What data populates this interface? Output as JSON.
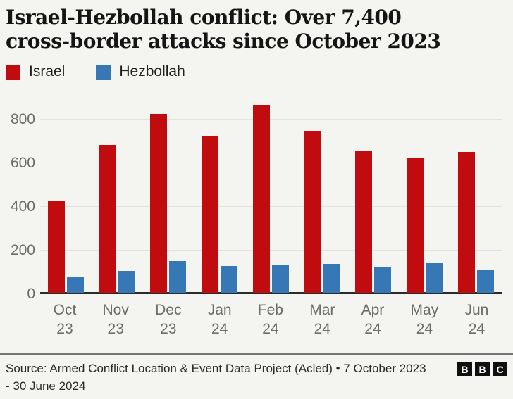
{
  "header": {
    "title_lines": [
      "Israel-Hezbollah conflict: Over 7,400",
      "cross-border attacks since October 2023"
    ]
  },
  "chart_data": {
    "type": "bar",
    "title": "Israel-Hezbollah conflict: Over 7,400 cross-border attacks since October 2023",
    "categories": [
      "Oct 23",
      "Nov 23",
      "Dec 23",
      "Jan 24",
      "Feb 24",
      "Mar 24",
      "Apr 24",
      "May 24",
      "Jun 24"
    ],
    "series": [
      {
        "name": "Israel",
        "color": "#c00c0e",
        "values": [
          425,
          681,
          822,
          724,
          864,
          744,
          656,
          619,
          648
        ]
      },
      {
        "name": "Hezbollah",
        "color": "#3677b5",
        "values": [
          73,
          104,
          150,
          127,
          131,
          136,
          120,
          140,
          108
        ]
      }
    ],
    "xlabel": "",
    "ylabel": "",
    "ylim": [
      0,
      900
    ],
    "yticks": [
      0,
      200,
      400,
      600,
      800
    ],
    "grid": true,
    "legend_position": "top-left"
  },
  "footer": {
    "source": "Source: Armed Conflict Location & Event Data Project (Acled) • 7 October 2023 - 30 June 2024",
    "logo_letters": [
      "B",
      "B",
      "C"
    ]
  },
  "colors": {
    "background": "#f4f4f1",
    "israel_red": "#c00c0e",
    "hezbollah_blue": "#3677b5",
    "axis_text": "#6c6c6c",
    "gridline": "#e2e1de",
    "zero_line": "#2b2b2b"
  }
}
